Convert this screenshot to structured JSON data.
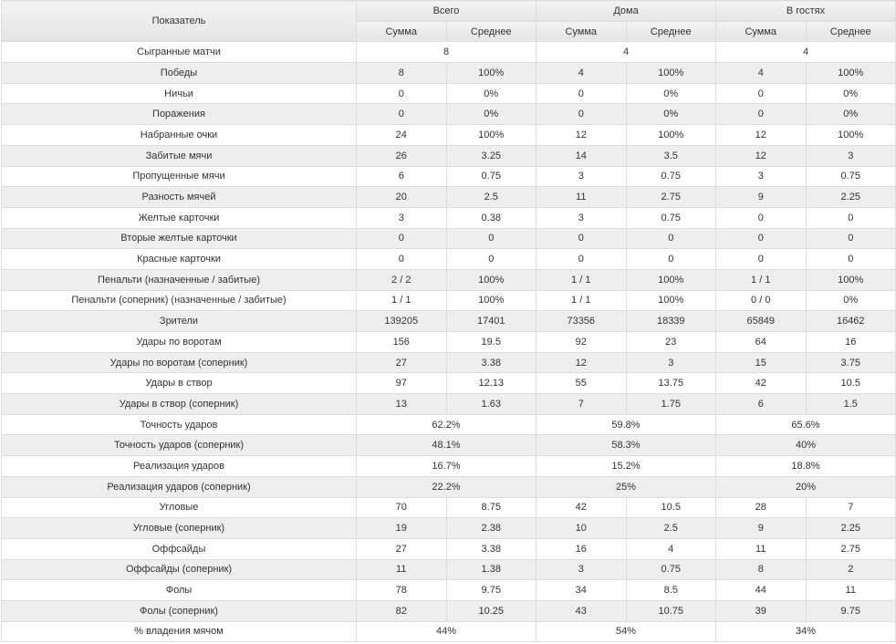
{
  "header": {
    "metric": "Показатель",
    "groups": [
      "Всего",
      "Дома",
      "В гостях"
    ],
    "sub": [
      "Сумма",
      "Среднее"
    ]
  },
  "rows": [
    {
      "label": "Сыгранные матчи",
      "merged": true,
      "values": [
        "8",
        "4",
        "4"
      ]
    },
    {
      "label": "Победы",
      "values": [
        "8",
        "100%",
        "4",
        "100%",
        "4",
        "100%"
      ]
    },
    {
      "label": "Ничьи",
      "values": [
        "0",
        "0%",
        "0",
        "0%",
        "0",
        "0%"
      ]
    },
    {
      "label": "Поражения",
      "values": [
        "0",
        "0%",
        "0",
        "0%",
        "0",
        "0%"
      ]
    },
    {
      "label": "Набранные очки",
      "values": [
        "24",
        "100%",
        "12",
        "100%",
        "12",
        "100%"
      ]
    },
    {
      "label": "Забитые мячи",
      "values": [
        "26",
        "3.25",
        "14",
        "3.5",
        "12",
        "3"
      ]
    },
    {
      "label": "Пропущенные мячи",
      "values": [
        "6",
        "0.75",
        "3",
        "0.75",
        "3",
        "0.75"
      ]
    },
    {
      "label": "Разность мячей",
      "values": [
        "20",
        "2.5",
        "11",
        "2.75",
        "9",
        "2.25"
      ]
    },
    {
      "label": "Желтые карточки",
      "values": [
        "3",
        "0.38",
        "3",
        "0.75",
        "0",
        "0"
      ]
    },
    {
      "label": "Вторые желтые карточки",
      "values": [
        "0",
        "0",
        "0",
        "0",
        "0",
        "0"
      ]
    },
    {
      "label": "Красные карточки",
      "values": [
        "0",
        "0",
        "0",
        "0",
        "0",
        "0"
      ]
    },
    {
      "label": "Пенальти (назначенные / забитые)",
      "values": [
        "2 / 2",
        "100%",
        "1 / 1",
        "100%",
        "1 / 1",
        "100%"
      ]
    },
    {
      "label": "Пенальти (соперник) (назначенные / забитые)",
      "values": [
        "1 / 1",
        "100%",
        "1 / 1",
        "100%",
        "0 / 0",
        "0%"
      ]
    },
    {
      "label": "Зрители",
      "values": [
        "139205",
        "17401",
        "73356",
        "18339",
        "65849",
        "16462"
      ]
    },
    {
      "label": "Удары по воротам",
      "values": [
        "156",
        "19.5",
        "92",
        "23",
        "64",
        "16"
      ]
    },
    {
      "label": "Удары по воротам (соперник)",
      "values": [
        "27",
        "3.38",
        "12",
        "3",
        "15",
        "3.75"
      ]
    },
    {
      "label": "Удары в створ",
      "values": [
        "97",
        "12.13",
        "55",
        "13.75",
        "42",
        "10.5"
      ]
    },
    {
      "label": "Удары в створ (соперник)",
      "values": [
        "13",
        "1.63",
        "7",
        "1.75",
        "6",
        "1.5"
      ]
    },
    {
      "label": "Точность ударов",
      "merged": true,
      "values": [
        "62.2%",
        "59.8%",
        "65.6%"
      ]
    },
    {
      "label": "Точность ударов (соперник)",
      "merged": true,
      "values": [
        "48.1%",
        "58.3%",
        "40%"
      ]
    },
    {
      "label": "Реализация ударов",
      "merged": true,
      "values": [
        "16.7%",
        "15.2%",
        "18.8%"
      ]
    },
    {
      "label": "Реализация ударов (соперник)",
      "merged": true,
      "values": [
        "22.2%",
        "25%",
        "20%"
      ]
    },
    {
      "label": "Угловые",
      "values": [
        "70",
        "8.75",
        "42",
        "10.5",
        "28",
        "7"
      ]
    },
    {
      "label": "Угловые (соперник)",
      "values": [
        "19",
        "2.38",
        "10",
        "2.5",
        "9",
        "2.25"
      ]
    },
    {
      "label": "Оффсайды",
      "values": [
        "27",
        "3.38",
        "16",
        "4",
        "11",
        "2.75"
      ]
    },
    {
      "label": "Оффсайды (соперник)",
      "values": [
        "11",
        "1.38",
        "3",
        "0.75",
        "8",
        "2"
      ]
    },
    {
      "label": "Фолы",
      "values": [
        "78",
        "9.75",
        "34",
        "8.5",
        "44",
        "11"
      ]
    },
    {
      "label": "Фолы (соперник)",
      "values": [
        "82",
        "10.25",
        "43",
        "10.75",
        "39",
        "9.75"
      ]
    },
    {
      "label": "% владения мячом",
      "merged": true,
      "values": [
        "44%",
        "54%",
        "34%"
      ]
    }
  ]
}
